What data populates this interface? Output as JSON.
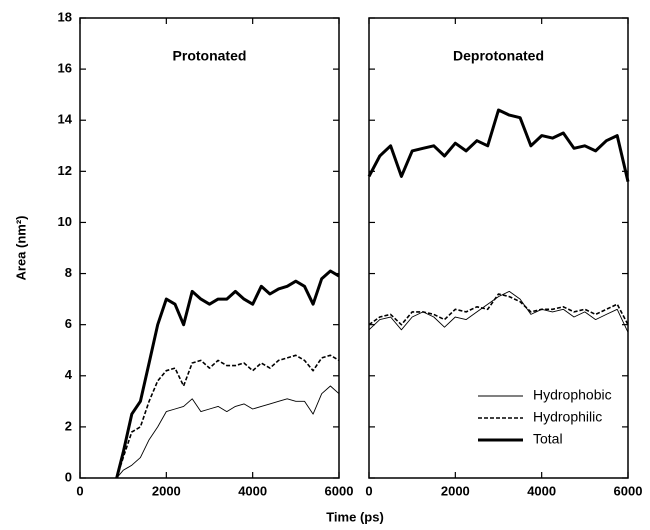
{
  "chart_data": [
    {
      "type": "line",
      "title": "Protonated",
      "ylabel": "Area (nm²)",
      "xlabel": "Time (ps)",
      "x": [
        850,
        1000,
        1200,
        1400,
        1600,
        1800,
        2000,
        2200,
        2400,
        2600,
        2800,
        3000,
        3200,
        3400,
        3600,
        3800,
        4000,
        4200,
        4400,
        4600,
        4800,
        5000,
        5200,
        5400,
        5600,
        5800,
        6000
      ],
      "series": [
        {
          "name": "Hydrophobic",
          "color": "#000000",
          "linestyle": "thin",
          "values": [
            0,
            0.3,
            0.5,
            0.8,
            1.5,
            2.0,
            2.6,
            2.7,
            2.8,
            3.1,
            2.6,
            2.7,
            2.8,
            2.6,
            2.8,
            2.9,
            2.7,
            2.8,
            2.9,
            3.0,
            3.1,
            3.0,
            3.0,
            2.5,
            3.3,
            3.6,
            3.3
          ]
        },
        {
          "name": "Hydrophilic",
          "color": "#000000",
          "linestyle": "dashed",
          "values": [
            0,
            0.8,
            1.8,
            2.0,
            3.0,
            3.8,
            4.2,
            4.3,
            3.6,
            4.5,
            4.6,
            4.3,
            4.6,
            4.4,
            4.4,
            4.5,
            4.2,
            4.5,
            4.3,
            4.6,
            4.7,
            4.8,
            4.6,
            4.2,
            4.7,
            4.8,
            4.6
          ]
        },
        {
          "name": "Total",
          "color": "#000000",
          "linestyle": "thick",
          "values": [
            0,
            1.0,
            2.5,
            3.0,
            4.5,
            6.0,
            7.0,
            6.8,
            6.0,
            7.3,
            7.0,
            6.8,
            7.0,
            7.0,
            7.3,
            7.0,
            6.8,
            7.5,
            7.2,
            7.4,
            7.5,
            7.7,
            7.5,
            6.8,
            7.8,
            8.1,
            7.9
          ]
        }
      ],
      "xlim": [
        0,
        6000
      ],
      "xticks": [
        0,
        2000,
        4000,
        6000
      ],
      "ylim": [
        0,
        18
      ],
      "yticks": [
        0,
        2,
        4,
        6,
        8,
        10,
        12,
        14,
        16,
        18
      ],
      "ytick_labels": true
    },
    {
      "type": "line",
      "title": "Deprotonated",
      "x": [
        0,
        250,
        500,
        750,
        1000,
        1250,
        1500,
        1750,
        2000,
        2250,
        2500,
        2750,
        3000,
        3250,
        3500,
        3750,
        4000,
        4250,
        4500,
        4750,
        5000,
        5250,
        5500,
        5750,
        6000
      ],
      "series": [
        {
          "name": "Hydrophobic",
          "color": "#000000",
          "linestyle": "thin",
          "values": [
            5.8,
            6.2,
            6.3,
            5.8,
            6.3,
            6.5,
            6.3,
            5.9,
            6.3,
            6.2,
            6.5,
            6.8,
            7.1,
            7.3,
            7.0,
            6.4,
            6.6,
            6.5,
            6.6,
            6.3,
            6.5,
            6.2,
            6.4,
            6.6,
            5.7
          ]
        },
        {
          "name": "Hydrophilic",
          "color": "#000000",
          "linestyle": "dashed",
          "values": [
            6.0,
            6.3,
            6.4,
            6.0,
            6.5,
            6.5,
            6.4,
            6.2,
            6.6,
            6.5,
            6.7,
            6.6,
            7.2,
            7.1,
            6.9,
            6.5,
            6.6,
            6.6,
            6.7,
            6.5,
            6.6,
            6.4,
            6.6,
            6.8,
            6.0
          ]
        },
        {
          "name": "Total",
          "color": "#000000",
          "linestyle": "thick",
          "values": [
            11.8,
            12.6,
            13.0,
            11.8,
            12.8,
            12.9,
            13.0,
            12.6,
            13.1,
            12.8,
            13.2,
            13.0,
            14.4,
            14.2,
            14.1,
            13.0,
            13.4,
            13.3,
            13.5,
            12.9,
            13.0,
            12.8,
            13.2,
            13.4,
            11.6
          ]
        }
      ],
      "xlim": [
        0,
        6000
      ],
      "xticks": [
        0,
        2000,
        4000,
        6000
      ],
      "ylim": [
        0,
        18
      ],
      "yticks": [
        0,
        2,
        4,
        6,
        8,
        10,
        12,
        14,
        16,
        18
      ],
      "ytick_labels": false,
      "legend": "lower right"
    }
  ]
}
